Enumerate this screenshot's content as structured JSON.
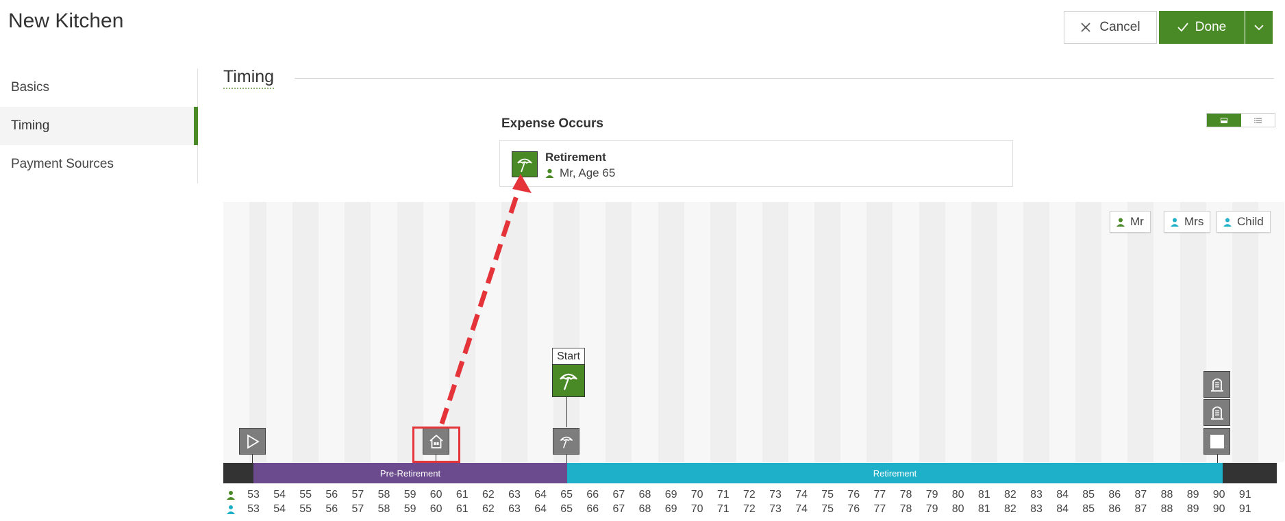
{
  "header": {
    "title": "New Kitchen",
    "cancel_label": "Cancel",
    "done_label": "Done"
  },
  "sidebar": {
    "items": [
      {
        "label": "Basics",
        "active": false
      },
      {
        "label": "Timing",
        "active": true
      },
      {
        "label": "Payment Sources",
        "active": false
      }
    ]
  },
  "section": {
    "title": "Timing"
  },
  "expense": {
    "heading": "Expense Occurs",
    "card_title": "Retirement",
    "card_subtitle": "Mr, Age 65",
    "icon": "beach-umbrella-icon"
  },
  "legend": [
    {
      "label": "Mr",
      "color": "#4a8a26"
    },
    {
      "label": "Mrs",
      "color": "#1fb0c9"
    },
    {
      "label": "Child",
      "color": "#1fb0c9"
    }
  ],
  "phases": [
    {
      "label": "Pre-Retirement",
      "color": "#6b4a8e"
    },
    {
      "label": "Retirement",
      "color": "#1fb0c9"
    }
  ],
  "timeline": {
    "start_label": "Start",
    "ages_mr": [
      "53",
      "54",
      "55",
      "56",
      "57",
      "58",
      "59",
      "60",
      "61",
      "62",
      "63",
      "64",
      "65",
      "66",
      "67",
      "68",
      "69",
      "70",
      "71",
      "72",
      "73",
      "74",
      "75",
      "76",
      "77",
      "78",
      "79",
      "80",
      "81",
      "82",
      "83",
      "84",
      "85",
      "86",
      "87",
      "88",
      "89",
      "90",
      "91"
    ],
    "ages_mrs": [
      "53",
      "54",
      "55",
      "56",
      "57",
      "58",
      "59",
      "60",
      "61",
      "62",
      "63",
      "64",
      "65",
      "66",
      "67",
      "68",
      "69",
      "70",
      "71",
      "72",
      "73",
      "74",
      "75",
      "76",
      "77",
      "78",
      "79",
      "80",
      "81",
      "82",
      "83",
      "84",
      "85",
      "86",
      "87",
      "88",
      "89",
      "90",
      "91"
    ],
    "markers": [
      {
        "name": "play-icon",
        "age": "53"
      },
      {
        "name": "house-icon",
        "age": "60"
      },
      {
        "name": "beach-umbrella-icon",
        "age": "65"
      },
      {
        "name": "tombstone-icon",
        "age": "90"
      },
      {
        "name": "tombstone-icon",
        "age": "90"
      },
      {
        "name": "stop-square-icon",
        "age": "90"
      }
    ]
  },
  "colors": {
    "accent": "#4a8a26",
    "pre_retirement": "#6b4a8e",
    "retirement": "#1fb0c9",
    "highlight": "#e5333a"
  }
}
